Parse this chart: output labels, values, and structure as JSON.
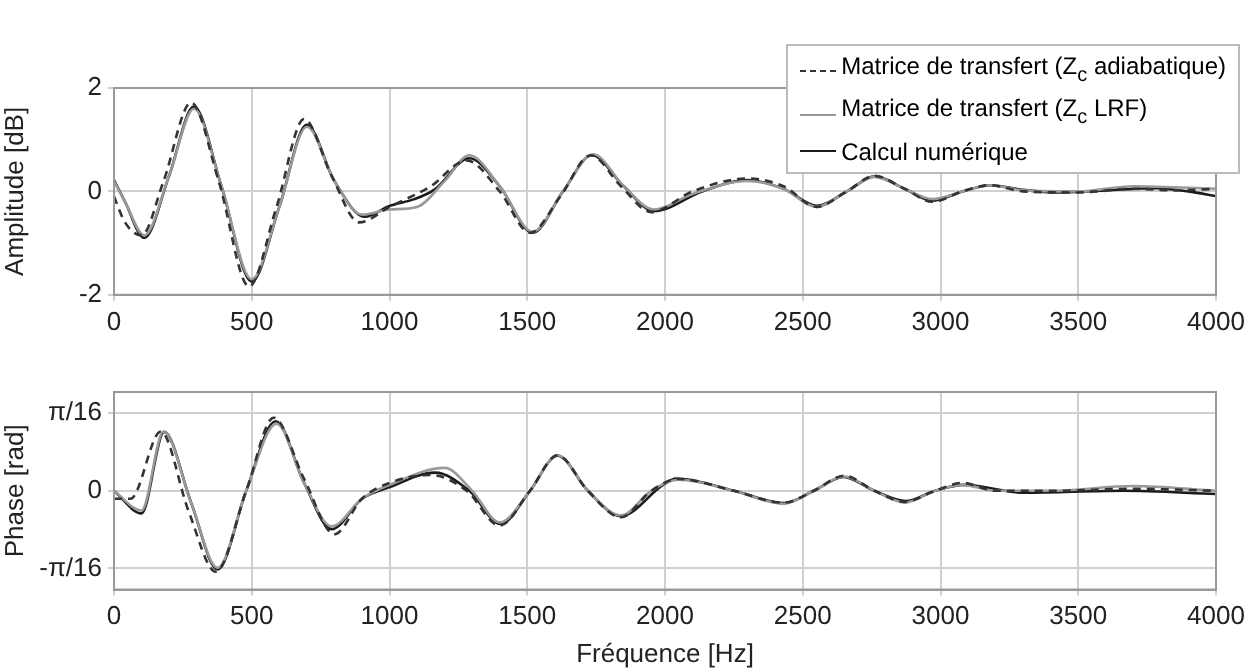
{
  "chart_data": [
    {
      "type": "line",
      "ylabel": "Amplitude [dB]",
      "xlim": [
        0,
        4000
      ],
      "xticks": [
        0,
        500,
        1000,
        1500,
        2000,
        2500,
        3000,
        3500,
        4000
      ],
      "ylim": [
        -2,
        2
      ],
      "yticks": [
        -2,
        0,
        2
      ],
      "grid": true,
      "legend": "top right",
      "marker": "none",
      "series": [
        {
          "name": "Matrice de transfert (Z$_{c}$ adiabatique)",
          "color": "#333333",
          "line_style": "dashed",
          "x": [
            0,
            40,
            100,
            180,
            280,
            380,
            490,
            590,
            690,
            790,
            890,
            1000,
            1150,
            1280,
            1400,
            1510,
            1620,
            1730,
            1840,
            1950,
            2100,
            2300,
            2430,
            2550,
            2660,
            2760,
            2870,
            2970,
            3080,
            3180,
            3300,
            3500,
            3700,
            3850,
            4000
          ],
          "values": [
            -0.1,
            -0.6,
            -0.85,
            0.2,
            1.72,
            0.2,
            -1.84,
            -0.3,
            1.4,
            0.3,
            -0.6,
            -0.3,
            0.1,
            0.6,
            0,
            -0.8,
            -0.1,
            0.7,
            0.1,
            -0.4,
            0,
            0.25,
            0.1,
            -0.3,
            0,
            0.3,
            0.05,
            -0.2,
            0,
            0.12,
            0,
            -0.02,
            0.05,
            0.02,
            0.05
          ]
        },
        {
          "name": "Matrice de transfert (Z$_{c}$ LRF)",
          "color": "#999999",
          "line_style": "solid",
          "x": [
            0,
            40,
            110,
            200,
            290,
            390,
            500,
            600,
            700,
            800,
            900,
            1000,
            1100,
            1200,
            1290,
            1400,
            1520,
            1630,
            1740,
            1850,
            1960,
            2100,
            2300,
            2430,
            2550,
            2660,
            2760,
            2870,
            2970,
            3080,
            3180,
            3300,
            3500,
            3700,
            3850,
            4000
          ],
          "values": [
            0.2,
            -0.2,
            -0.85,
            0.3,
            1.6,
            0.1,
            -1.7,
            -0.3,
            1.25,
            0.2,
            -0.45,
            -0.35,
            -0.3,
            0.2,
            0.7,
            0.1,
            -0.78,
            0,
            0.72,
            0.1,
            -0.35,
            -0.05,
            0.2,
            0.05,
            -0.3,
            0,
            0.28,
            0.05,
            -0.15,
            0,
            0.12,
            0.02,
            0,
            0.1,
            0.08,
            0.05
          ]
        },
        {
          "name": "Calcul numérique",
          "color": "#1a1a1a",
          "line_style": "solid",
          "x": [
            0,
            40,
            110,
            200,
            290,
            390,
            500,
            600,
            700,
            800,
            910,
            1000,
            1090,
            1165,
            1290,
            1400,
            1520,
            1630,
            1735,
            1850,
            1960,
            2135,
            2300,
            2430,
            2552,
            2660,
            2762,
            2870,
            2969,
            3080,
            3183,
            3300,
            3421,
            3600,
            3780,
            3900,
            4000
          ],
          "values": [
            0.22,
            -0.2,
            -0.9,
            0.3,
            1.64,
            0.1,
            -1.74,
            -0.3,
            1.29,
            0.2,
            -0.49,
            -0.28,
            -0.15,
            0.04,
            0.64,
            0.1,
            -0.8,
            0,
            0.7,
            0.1,
            -0.38,
            0,
            0.22,
            0.05,
            -0.28,
            0,
            0.29,
            0.05,
            -0.18,
            0,
            0.12,
            0.03,
            -0.02,
            0.02,
            0.06,
            0,
            -0.09
          ]
        }
      ]
    },
    {
      "type": "line",
      "xlabel": "Fréquence [Hz]",
      "ylabel": "Phase [rad]",
      "xlim": [
        0,
        4000
      ],
      "xticks": [
        0,
        500,
        1000,
        1500,
        2000,
        2500,
        3000,
        3500,
        4000
      ],
      "ylim": [
        -0.25,
        0.25
      ],
      "yticks": [
        {
          "value": -0.19635,
          "label": "-π/16"
        },
        0,
        {
          "value": 0.19635,
          "label": "π/16"
        }
      ],
      "grid": true,
      "marker": "none",
      "series": [
        {
          "color": "#333333",
          "line_style": "dashed",
          "x": [
            0,
            60,
            170,
            270,
            370,
            480,
            580,
            690,
            800,
            900,
            1000,
            1150,
            1280,
            1400,
            1510,
            1610,
            1720,
            1840,
            1950,
            2050,
            2250,
            2430,
            2540,
            2650,
            2760,
            2870,
            2980,
            3080,
            3200,
            3400,
            3700,
            4000
          ],
          "values": [
            -0.02,
            -0.02,
            0.15,
            -0.05,
            -0.205,
            0,
            0.185,
            0.03,
            -0.11,
            -0.02,
            0.02,
            0.04,
            0,
            -0.088,
            0,
            0.09,
            0,
            -0.067,
            0,
            0.03,
            0,
            -0.03,
            0,
            0.038,
            0,
            -0.028,
            0,
            0.02,
            0,
            0,
            0.005,
            0
          ]
        },
        {
          "color": "#999999",
          "line_style": "solid",
          "x": [
            0,
            100,
            180,
            280,
            376,
            480,
            590,
            690,
            790,
            900,
            1000,
            1200,
            1300,
            1400,
            1510,
            1610,
            1720,
            1840,
            1950,
            2050,
            2250,
            2430,
            2540,
            2650,
            2760,
            2870,
            2980,
            3080,
            3200,
            3400,
            3700,
            4000
          ],
          "values": [
            0,
            -0.05,
            0.15,
            -0.03,
            -0.195,
            0,
            0.17,
            0.02,
            -0.09,
            -0.02,
            0.015,
            0.058,
            0,
            -0.08,
            0,
            0.09,
            0,
            -0.062,
            0,
            0.028,
            0,
            -0.033,
            0,
            0.036,
            0,
            -0.03,
            0,
            0.015,
            0,
            0,
            0.012,
            0
          ]
        },
        {
          "color": "#1a1a1a",
          "line_style": "solid",
          "x": [
            0,
            100,
            182,
            280,
            376,
            480,
            587,
            690,
            790,
            900,
            995,
            1165,
            1290,
            1403,
            1510,
            1610,
            1720,
            1840,
            1993,
            2040,
            2250,
            2433,
            2540,
            2648,
            2760,
            2874,
            2980,
            3083,
            3302,
            3660,
            4000
          ],
          "values": [
            0,
            -0.057,
            0.149,
            -0.03,
            -0.199,
            0,
            0.176,
            0.02,
            -0.097,
            -0.02,
            0.008,
            0.046,
            0,
            -0.084,
            0,
            0.089,
            0,
            -0.064,
            0.015,
            0.031,
            0,
            -0.031,
            0,
            0.035,
            0,
            -0.026,
            0,
            0.015,
            -0.005,
            0,
            -0.008
          ]
        }
      ]
    }
  ]
}
